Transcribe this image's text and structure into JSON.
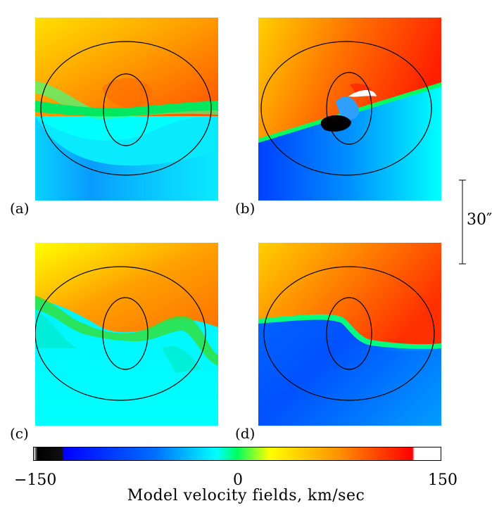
{
  "panels": [
    {
      "label": "(a)"
    },
    {
      "label": "(b)"
    },
    {
      "label": "(c)"
    },
    {
      "label": "(d)"
    }
  ],
  "scale_bar": {
    "label": "30″"
  },
  "colorbar": {
    "min_label": "−150",
    "mid_label": "0",
    "max_label": "150",
    "range": [
      -150,
      150
    ],
    "stops": [
      "#ffffff",
      "#000000",
      "#0000ff",
      "#00ffff",
      "#00ff40",
      "#ffff00",
      "#ff8000",
      "#ff0000",
      "#ffffff"
    ]
  },
  "caption": "Model velocity fields, km/sec"
}
